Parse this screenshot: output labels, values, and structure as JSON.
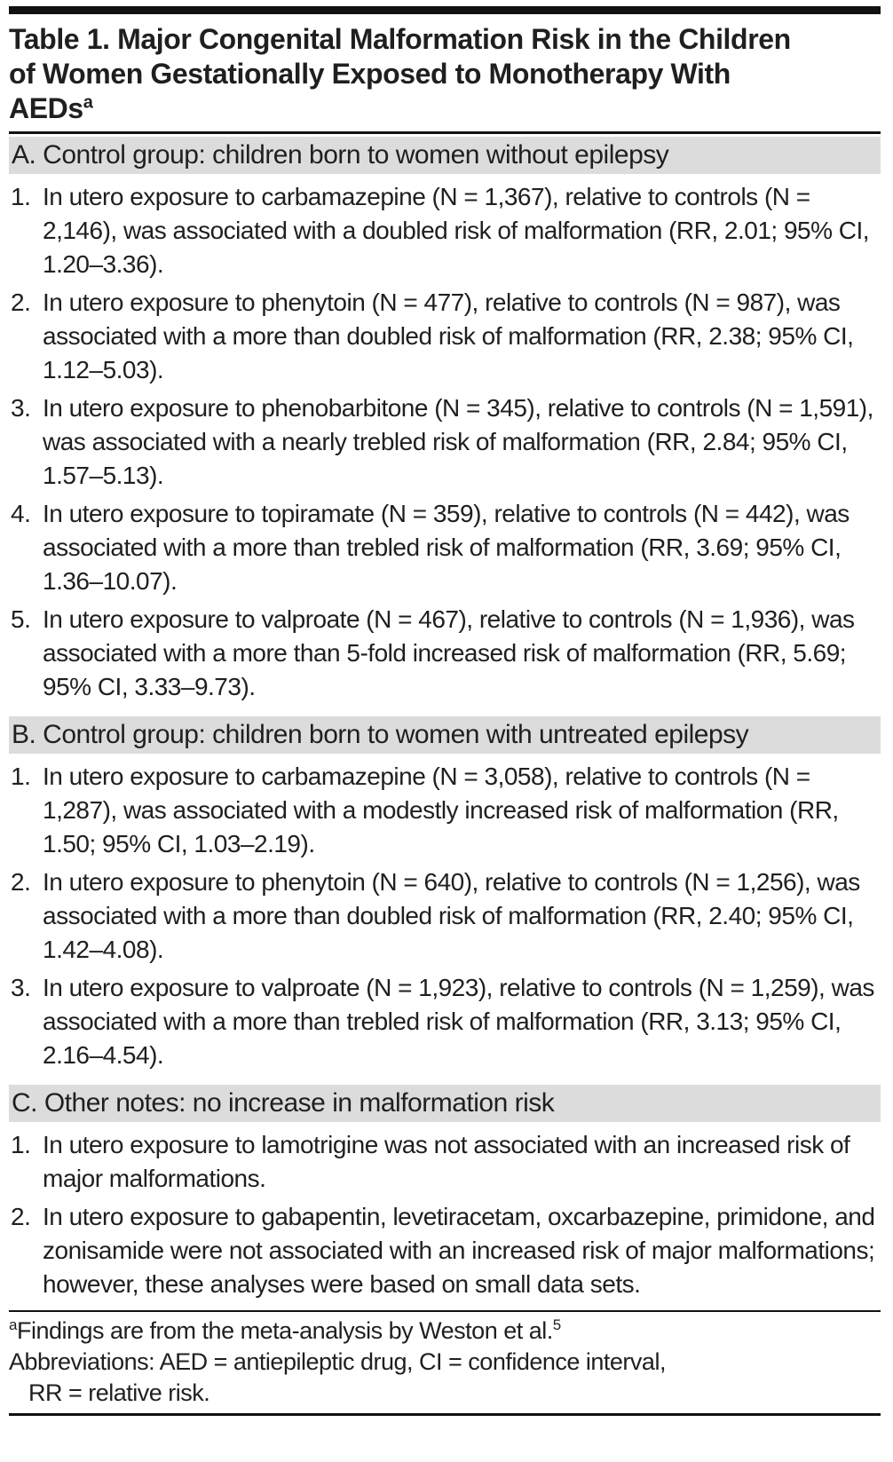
{
  "document": {
    "title_lines": [
      "Table 1. Major Congenital Malformation Risk in the Children",
      "of Women Gestationally Exposed to Monotherapy With",
      "AEDs"
    ],
    "title_footnote_marker": "a",
    "sections": [
      {
        "header": "A. Control group: children born to women without epilepsy",
        "items": [
          {
            "n": "1.",
            "text": "In utero exposure to carbamazepine (N = 1,367), relative to controls (N = 2,146), was associated with a doubled risk of malformation (RR, 2.01; 95% CI, 1.20–3.36)."
          },
          {
            "n": "2.",
            "text": "In utero exposure to phenytoin (N = 477), relative to controls (N = 987), was associated with a more than doubled risk of malformation (RR, 2.38; 95% CI, 1.12–5.03)."
          },
          {
            "n": "3.",
            "text": "In utero exposure to phenobarbitone (N = 345), relative to controls (N = 1,591), was associated with a nearly trebled risk of malformation (RR, 2.84; 95% CI, 1.57–5.13)."
          },
          {
            "n": "4.",
            "text": "In utero exposure to topiramate (N = 359), relative to controls (N = 442), was associated with a more than trebled risk of malformation (RR, 3.69; 95% CI, 1.36–10.07)."
          },
          {
            "n": "5.",
            "text": "In utero exposure to valproate (N = 467), relative to controls (N = 1,936), was associated with a more than 5-fold increased risk of malformation (RR, 5.69; 95% CI, 3.33–9.73)."
          }
        ]
      },
      {
        "header": "B. Control group: children born to women with untreated epilepsy",
        "items": [
          {
            "n": "1.",
            "text": "In utero exposure to carbamazepine (N = 3,058), relative to controls (N = 1,287), was associated with a modestly increased risk of malformation (RR, 1.50; 95% CI, 1.03–2.19)."
          },
          {
            "n": "2.",
            "text": "In utero exposure to phenytoin (N = 640), relative to controls (N = 1,256), was associated with a more than doubled risk of malformation (RR, 2.40; 95% CI, 1.42–4.08)."
          },
          {
            "n": "3.",
            "text": "In utero exposure to valproate (N = 1,923), relative to controls (N = 1,259), was associated with a more than trebled risk of malformation (RR, 3.13; 95% CI, 2.16–4.54)."
          }
        ]
      },
      {
        "header": "C. Other notes: no increase in malformation risk",
        "items": [
          {
            "n": "1.",
            "text": "In utero exposure to lamotrigine was not associated with an increased risk of major malformations."
          },
          {
            "n": "2.",
            "text": "In utero exposure to gabapentin, levetiracetam, oxcarbazepine, primidone, and zonisamide were not associated with an increased risk of major malformations; however, these analyses were based on small data sets."
          }
        ]
      }
    ],
    "footnotes": {
      "marker": "a",
      "source_text": "Findings are from the meta-analysis by Weston et al.",
      "source_ref": "5",
      "abbreviations_line1": "Abbreviations: AED = antiepileptic drug, CI = confidence interval,",
      "abbreviations_line2": "RR = relative risk."
    },
    "colors": {
      "section_header_bg": "#dcdcdc",
      "text": "#1f1f1f",
      "rule": "#111111"
    }
  }
}
